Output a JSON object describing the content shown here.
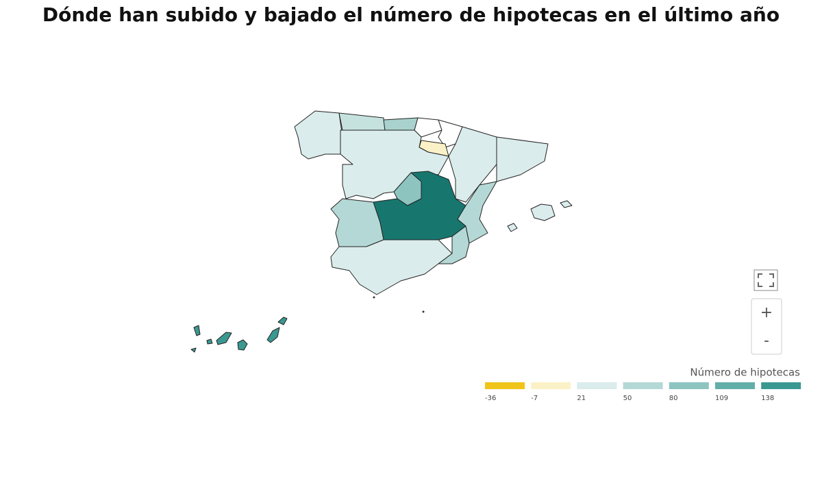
{
  "title": "Dónde han subido y bajado el número de hipotecas en el último año",
  "legend": {
    "title": "Número de hipotecas",
    "ticks": [
      -36,
      -7,
      21,
      50,
      80,
      109,
      138
    ],
    "colors": [
      "#f0c419",
      "#fbf1c6",
      "#daeceb",
      "#b4d8d5",
      "#8dc4c0",
      "#62aea8",
      "#3b9891"
    ]
  },
  "region_colors": [
    "#daeceb",
    "#c6e2df",
    "#a9d2ce",
    "#ffffff",
    "#ffffff",
    "#fbf1c6",
    "#daeceb",
    "#daeceb",
    "#daeceb",
    "#8dc4c0",
    "#17776e",
    "#b4d8d5",
    "#daeceb",
    "#b4d8d5",
    "#b4d8d5",
    "#daeceb",
    "#daeceb",
    "#daeceb",
    "#3b9891",
    "#3b9891",
    "#3b9891",
    "#3b9891",
    "#3b9891",
    "#3b9891",
    "#3b9891"
  ],
  "controls": {
    "zoom_in": "+",
    "zoom_out": "-"
  }
}
